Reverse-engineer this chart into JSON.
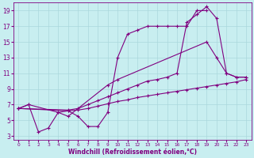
{
  "background_color": "#c8eef0",
  "line_color": "#800080",
  "xlabel": "Windchill (Refroidissement éolien,°C)",
  "xlim": [
    -0.5,
    23.5
  ],
  "ylim": [
    2.5,
    20
  ],
  "yticks": [
    3,
    5,
    7,
    9,
    11,
    13,
    15,
    17,
    19
  ],
  "xticks": [
    0,
    1,
    2,
    3,
    4,
    5,
    6,
    7,
    8,
    9,
    10,
    11,
    12,
    13,
    14,
    15,
    16,
    17,
    18,
    19,
    20,
    21,
    22,
    23
  ],
  "grid_color": "#aad8dc",
  "curve1": {
    "x": [
      0,
      1,
      2,
      3,
      4,
      5,
      6,
      7,
      8,
      9,
      10,
      11,
      12,
      13,
      14,
      15,
      16,
      17,
      18,
      19
    ],
    "y": [
      6.5,
      7.0,
      3.5,
      4.0,
      6.0,
      6.2,
      5.5,
      4.2,
      4.2,
      6.0,
      13.0,
      16.0,
      16.5,
      17.0,
      17.0,
      17.0,
      17.0,
      17.0,
      19.0,
      19.0
    ]
  },
  "curve2": {
    "x": [
      0,
      1,
      4,
      5,
      9,
      10,
      19,
      20,
      21,
      22,
      23
    ],
    "y": [
      6.5,
      7.0,
      6.0,
      5.5,
      9.5,
      10.2,
      15.0,
      13.0,
      11.0,
      10.5,
      10.5
    ]
  },
  "curve3": {
    "x": [
      0,
      5,
      6,
      7,
      8,
      9,
      10,
      11,
      12,
      13,
      14,
      15,
      16,
      17,
      18,
      19,
      20,
      21,
      22,
      23
    ],
    "y": [
      6.5,
      6.2,
      6.3,
      6.5,
      6.8,
      7.1,
      7.4,
      7.6,
      7.9,
      8.1,
      8.3,
      8.5,
      8.7,
      8.9,
      9.1,
      9.3,
      9.5,
      9.7,
      9.9,
      10.2
    ]
  },
  "curve4": {
    "x": [
      0,
      5,
      6,
      7,
      8,
      9,
      10,
      11,
      12,
      13,
      14,
      15,
      16,
      17,
      18,
      19,
      20,
      21,
      22,
      23
    ],
    "y": [
      6.5,
      6.3,
      6.5,
      7.0,
      7.5,
      8.0,
      8.5,
      9.0,
      9.5,
      10.0,
      10.2,
      10.5,
      11.0,
      17.5,
      18.5,
      19.5,
      18.0,
      11.0,
      10.5,
      10.5
    ]
  }
}
